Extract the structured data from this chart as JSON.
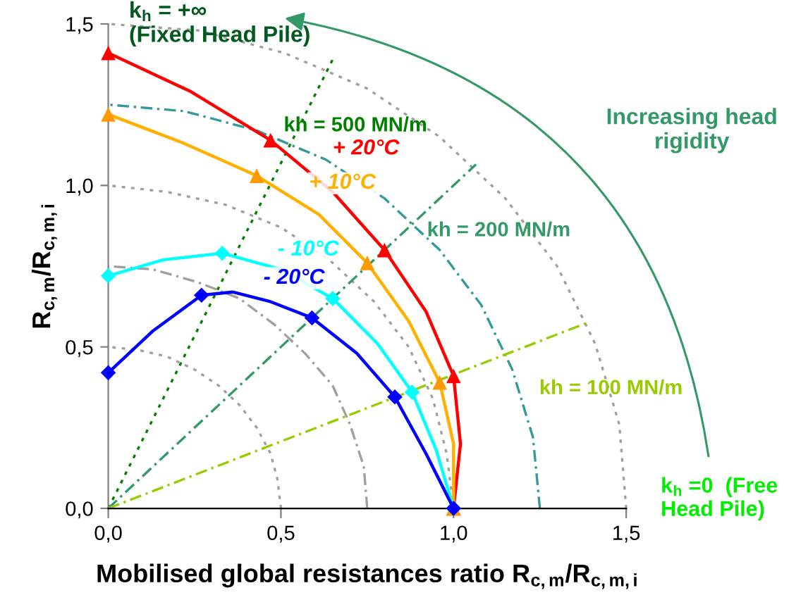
{
  "chart_data": {
    "type": "line",
    "xlabel": "Mobilised global resistances ratio R$_{c,m}$/R$_{c,m,i}$",
    "ylabel": "R$_{c,m}$/R$_{c,m,i}$",
    "xlim": [
      0,
      1.5
    ],
    "ylim": [
      0,
      1.5
    ],
    "xticks": [
      {
        "value": 0,
        "label": "0,0"
      },
      {
        "value": 0.5,
        "label": "0,5"
      },
      {
        "value": 1.0,
        "label": "1,0"
      },
      {
        "value": 1.5,
        "label": "1,5"
      }
    ],
    "yticks": [
      {
        "value": 0,
        "label": "0,0"
      },
      {
        "value": 0.5,
        "label": "0,5"
      },
      {
        "value": 1.0,
        "label": "1,0"
      },
      {
        "value": 1.5,
        "label": "1,5"
      }
    ],
    "grid": false,
    "legend": false,
    "annotations": [
      "k$_{h}$ = +∞\n(Fixed Head Pile)",
      "Increasing head\nrigidity",
      "k$_{h}$ =0  (Free\nHead Pile)"
    ],
    "series": [
      {
        "color": "#a0a0a0",
        "line_style": "dotted",
        "marker": "none",
        "x": [
          0.5,
          0.49,
          0.47,
          0.43,
          0.38,
          0.32,
          0.25,
          0.17,
          0.09,
          0
        ],
        "values": [
          0,
          0.09,
          0.17,
          0.25,
          0.32,
          0.38,
          0.43,
          0.47,
          0.49,
          0.5
        ]
      },
      {
        "color": "#a0a0a0",
        "line_style": "dashed",
        "marker": "none",
        "x": [
          0.75,
          0.74,
          0.7,
          0.65,
          0.57,
          0.48,
          0.38,
          0.26,
          0.13,
          0
        ],
        "values": [
          0,
          0.13,
          0.26,
          0.38,
          0.48,
          0.57,
          0.65,
          0.7,
          0.74,
          0.75
        ]
      },
      {
        "color": "#a0a0a0",
        "line_style": "dotted",
        "marker": "none",
        "x": [
          1.0,
          0.98,
          0.94,
          0.87,
          0.77,
          0.64,
          0.5,
          0.34,
          0.17,
          0
        ],
        "values": [
          0,
          0.17,
          0.34,
          0.5,
          0.64,
          0.77,
          0.87,
          0.94,
          0.98,
          1.0
        ]
      },
      {
        "color": "#339999",
        "line_style": "dashed",
        "marker": "none",
        "x": [
          1.25,
          1.23,
          1.17,
          1.08,
          0.96,
          0.8,
          0.63,
          0.43,
          0.22,
          0
        ],
        "values": [
          0,
          0.22,
          0.43,
          0.63,
          0.8,
          0.96,
          1.08,
          1.17,
          1.23,
          1.25
        ]
      },
      {
        "color": "#a0a0a0",
        "line_style": "dotted",
        "marker": "none",
        "x": [
          1.5,
          1.48,
          1.41,
          1.3,
          1.15,
          0.96,
          0.75,
          0.51,
          0.26,
          0
        ],
        "values": [
          0,
          0.26,
          0.51,
          0.75,
          0.96,
          1.15,
          1.3,
          1.41,
          1.48,
          1.5
        ]
      },
      {
        "name": "kh = 500 MN/m",
        "color": "#008000",
        "line_style": "dotted",
        "marker": "none",
        "x": [
          0,
          0.65
        ],
        "values": [
          0,
          1.39
        ]
      },
      {
        "name": "kh = 200 MN/m",
        "color": "#339966",
        "line_style": "dashed",
        "marker": "none",
        "x": [
          0,
          1.065
        ],
        "values": [
          0,
          1.065
        ]
      },
      {
        "name": "kh = 100 MN/m",
        "color": "#99cc00",
        "line_style": "dashed",
        "marker": "none",
        "x": [
          0,
          1.39
        ],
        "values": [
          0,
          0.576
        ]
      },
      {
        "name": "+ 20°C",
        "color": "#ff0000",
        "line_style": "solid",
        "marker": "none",
        "x": [
          0,
          0.24,
          0.47,
          0.65,
          0.8,
          0.92,
          1.0,
          1.02,
          1.0
        ],
        "values": [
          1.41,
          1.29,
          1.14,
          0.98,
          0.8,
          0.61,
          0.41,
          0.2,
          0
        ]
      },
      {
        "name": "+ 10°C",
        "color": "#ffb000",
        "line_style": "solid",
        "marker": "none",
        "x": [
          0,
          0.22,
          0.43,
          0.61,
          0.75,
          0.87,
          0.96,
          1.0,
          1.0
        ],
        "values": [
          1.22,
          1.13,
          1.03,
          0.91,
          0.76,
          0.58,
          0.39,
          0.2,
          0
        ]
      },
      {
        "name": "- 10°C",
        "color": "#00ffff",
        "line_style": "solid",
        "marker": "none",
        "x": [
          0,
          0.16,
          0.33,
          0.5,
          0.65,
          0.78,
          0.88,
          0.95,
          1.0
        ],
        "values": [
          0.72,
          0.77,
          0.79,
          0.74,
          0.65,
          0.51,
          0.36,
          0.18,
          0
        ]
      },
      {
        "name": "- 20°C",
        "color": "#0000ff",
        "line_style": "solid",
        "marker": "none",
        "x": [
          0,
          0.13,
          0.27,
          0.36,
          0.47,
          0.59,
          0.72,
          0.83,
          0.92,
          1.0
        ],
        "values": [
          0.42,
          0.55,
          0.66,
          0.67,
          0.64,
          0.59,
          0.48,
          0.345,
          0.17,
          0
        ]
      },
      {
        "type": "scatter",
        "color": "#ff0000",
        "marker": "triangle",
        "x": [
          0,
          0.47,
          0.8,
          1.0,
          1.0
        ],
        "values": [
          1.41,
          1.14,
          0.8,
          0.41,
          0
        ]
      },
      {
        "type": "scatter",
        "color": "#ff9900",
        "marker": "triangle",
        "x": [
          0,
          0.43,
          0.75,
          0.96,
          1.0
        ],
        "values": [
          1.22,
          1.03,
          0.76,
          0.39,
          0
        ]
      },
      {
        "type": "scatter",
        "color": "#00ffff",
        "marker": "diamond",
        "x": [
          0,
          0.33,
          0.65,
          0.88,
          1.0
        ],
        "values": [
          0.72,
          0.79,
          0.65,
          0.36,
          0
        ]
      },
      {
        "type": "scatter",
        "color": "#0000ff",
        "marker": "diamond",
        "x": [
          0,
          0.27,
          0.59,
          0.83,
          1.0
        ],
        "values": [
          0.42,
          0.66,
          0.59,
          0.345,
          0
        ]
      }
    ]
  }
}
